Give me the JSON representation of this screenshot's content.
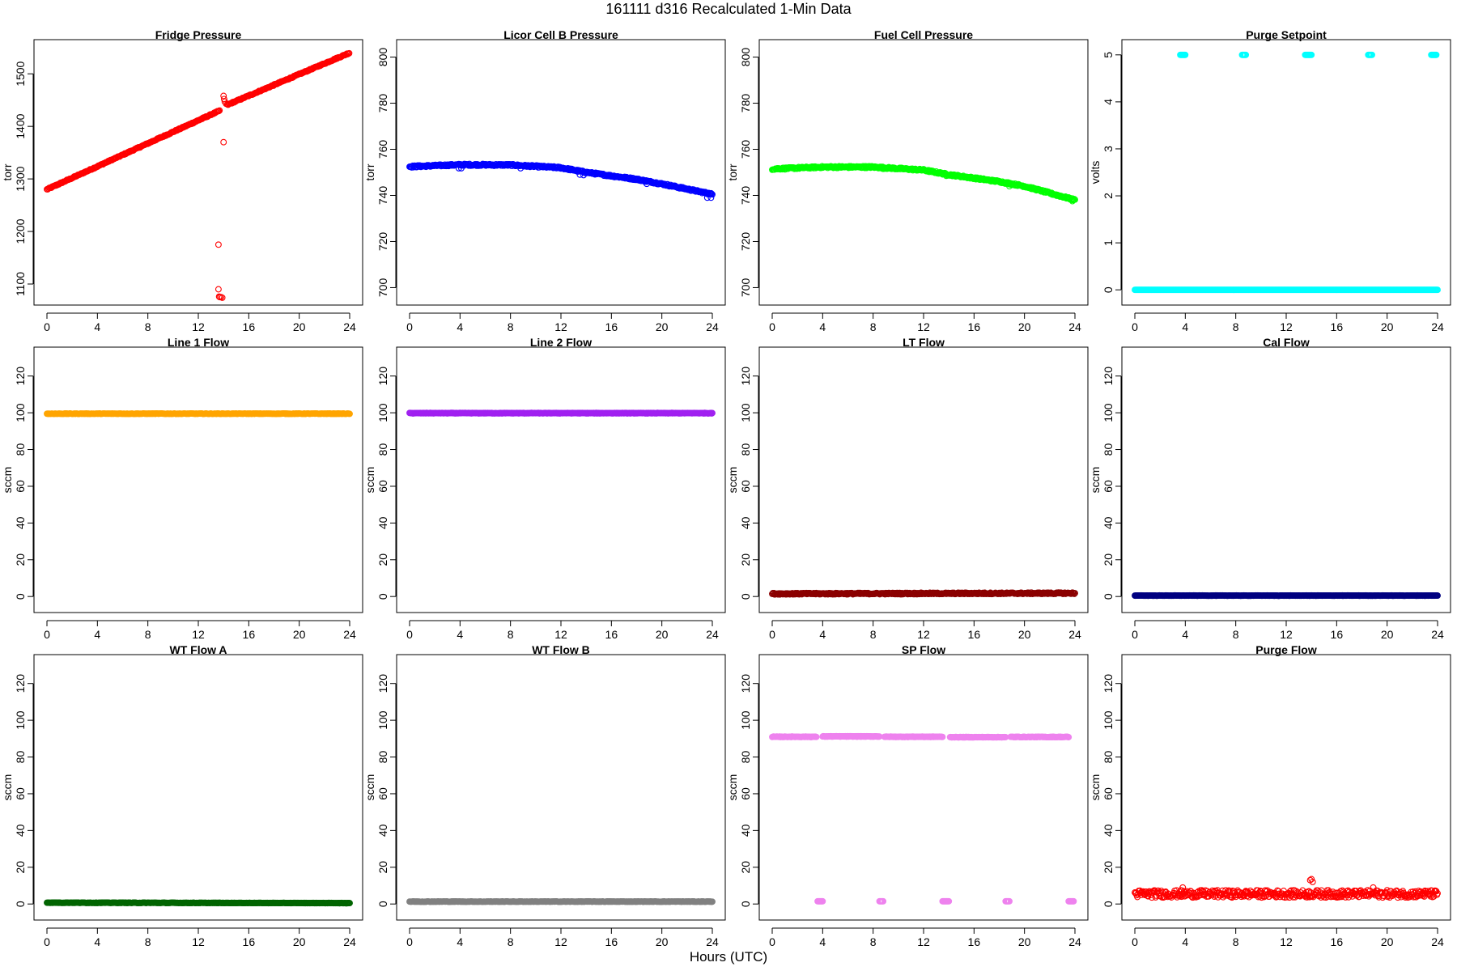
{
  "figure": {
    "title": "161111   d316   Recalculated 1-Min Data",
    "xlabel": "Hours (UTC)"
  },
  "chart_data": [
    {
      "type": "scatter",
      "title": "Fridge Pressure",
      "ylabel": "torr",
      "xlim": [
        0,
        24
      ],
      "ylim": [
        1080,
        1545
      ],
      "xticks": [
        0,
        4,
        8,
        12,
        16,
        20,
        24
      ],
      "yticks": [
        1100,
        1200,
        1300,
        1400,
        1500
      ],
      "color": "#ff0000",
      "series": [
        {
          "kind": "linear",
          "x0": 0,
          "x1": 13.7,
          "y0": 1280,
          "y1": 1430,
          "step": 0.06,
          "noise": 1.0
        },
        {
          "kind": "points",
          "points": [
            [
              14.0,
              1458
            ],
            [
              14.05,
              1452
            ],
            [
              14.1,
              1447
            ],
            [
              14.2,
              1443
            ]
          ]
        },
        {
          "kind": "linear",
          "x0": 14.3,
          "x1": 24,
          "y0": 1441,
          "y1": 1540,
          "step": 0.06,
          "noise": 1.0
        },
        {
          "kind": "points",
          "points": [
            [
              14.0,
              1370
            ],
            [
              13.6,
              1175
            ],
            [
              13.6,
              1090
            ],
            [
              13.7,
              1075
            ],
            [
              13.8,
              1075
            ],
            [
              13.9,
              1074
            ],
            [
              13.65,
              1076
            ]
          ]
        }
      ]
    },
    {
      "type": "scatter",
      "title": "Licor Cell B Pressure",
      "ylabel": "torr",
      "xlim": [
        0,
        24
      ],
      "ylim": [
        697,
        803
      ],
      "xticks": [
        0,
        4,
        8,
        12,
        16,
        20,
        24
      ],
      "yticks": [
        700,
        720,
        740,
        760,
        780,
        800
      ],
      "color": "#0000ff",
      "series": [
        {
          "kind": "curve",
          "x0": 0,
          "x1": 24,
          "knots": [
            [
              0,
              752.5
            ],
            [
              4,
              753.3
            ],
            [
              8,
              753.2
            ],
            [
              12,
              752
            ],
            [
              14,
              750
            ],
            [
              18,
              747
            ],
            [
              20,
              745
            ],
            [
              24,
              740.5
            ]
          ],
          "step": 0.05,
          "noise": 0.4
        },
        {
          "kind": "points",
          "points": [
            [
              3.9,
              751.8
            ],
            [
              4.1,
              751.8
            ],
            [
              8.8,
              751.8
            ],
            [
              13.5,
              749
            ],
            [
              13.8,
              748.8
            ],
            [
              18.8,
              745
            ],
            [
              23.6,
              739
            ],
            [
              23.9,
              739
            ]
          ]
        }
      ]
    },
    {
      "type": "scatter",
      "title": "Fuel Cell Pressure",
      "ylabel": "torr",
      "xlim": [
        0,
        24
      ],
      "ylim": [
        697,
        803
      ],
      "xticks": [
        0,
        4,
        8,
        12,
        16,
        20,
        24
      ],
      "yticks": [
        700,
        720,
        740,
        760,
        780,
        800
      ],
      "color": "#00ff00",
      "series": [
        {
          "kind": "curve",
          "x0": 0,
          "x1": 24,
          "knots": [
            [
              0,
              751.5
            ],
            [
              4,
              752.3
            ],
            [
              8,
              752.3
            ],
            [
              12,
              751
            ],
            [
              14,
              749
            ],
            [
              18,
              746
            ],
            [
              20,
              744
            ],
            [
              24,
              738
            ]
          ],
          "step": 0.05,
          "noise": 0.4
        },
        {
          "kind": "points",
          "points": [
            [
              8.8,
              751.5
            ],
            [
              13.8,
              748.5
            ],
            [
              18.8,
              744
            ],
            [
              23.8,
              737.5
            ]
          ]
        }
      ]
    },
    {
      "type": "scatter",
      "title": "Purge Setpoint",
      "ylabel": "volts",
      "xlim": [
        0,
        24
      ],
      "ylim": [
        -0.1,
        5.1
      ],
      "xticks": [
        0,
        4,
        8,
        12,
        16,
        20,
        24
      ],
      "yticks": [
        0,
        1,
        2,
        3,
        4,
        5
      ],
      "color": "#00ffff",
      "series": [
        {
          "kind": "linear",
          "x0": 0,
          "x1": 24,
          "y0": 0,
          "y1": 0,
          "step": 0.05,
          "noise": 0
        },
        {
          "kind": "linear",
          "x0": 3.6,
          "x1": 4.0,
          "y0": 5,
          "y1": 5,
          "step": 0.05,
          "noise": 0
        },
        {
          "kind": "linear",
          "x0": 8.5,
          "x1": 8.8,
          "y0": 5,
          "y1": 5,
          "step": 0.05,
          "noise": 0
        },
        {
          "kind": "linear",
          "x0": 13.5,
          "x1": 14.0,
          "y0": 5,
          "y1": 5,
          "step": 0.05,
          "noise": 0
        },
        {
          "kind": "linear",
          "x0": 18.5,
          "x1": 18.8,
          "y0": 5,
          "y1": 5,
          "step": 0.05,
          "noise": 0
        },
        {
          "kind": "linear",
          "x0": 23.5,
          "x1": 23.9,
          "y0": 5,
          "y1": 5,
          "step": 0.05,
          "noise": 0
        }
      ]
    },
    {
      "type": "scatter",
      "title": "Line 1 Flow",
      "ylabel": "sccm",
      "xlim": [
        0,
        24
      ],
      "ylim": [
        -3,
        130
      ],
      "xticks": [
        0,
        4,
        8,
        12,
        16,
        20,
        24
      ],
      "yticks": [
        0,
        20,
        40,
        60,
        80,
        100,
        120
      ],
      "color": "#ffa500",
      "series": [
        {
          "kind": "linear",
          "x0": 0,
          "x1": 24,
          "y0": 99.5,
          "y1": 99.5,
          "step": 0.05,
          "noise": 0.1
        }
      ]
    },
    {
      "type": "scatter",
      "title": "Line 2 Flow",
      "ylabel": "sccm",
      "xlim": [
        0,
        24
      ],
      "ylim": [
        -3,
        130
      ],
      "xticks": [
        0,
        4,
        8,
        12,
        16,
        20,
        24
      ],
      "yticks": [
        0,
        20,
        40,
        60,
        80,
        100,
        120
      ],
      "color": "#a020f0",
      "series": [
        {
          "kind": "linear",
          "x0": 0,
          "x1": 24,
          "y0": 99.8,
          "y1": 99.8,
          "step": 0.05,
          "noise": 0.15
        }
      ]
    },
    {
      "type": "scatter",
      "title": "LT Flow",
      "ylabel": "sccm",
      "xlim": [
        0,
        24
      ],
      "ylim": [
        -3,
        130
      ],
      "xticks": [
        0,
        4,
        8,
        12,
        16,
        20,
        24
      ],
      "yticks": [
        0,
        20,
        40,
        60,
        80,
        100,
        120
      ],
      "color": "#8b0000",
      "series": [
        {
          "kind": "linear",
          "x0": 0,
          "x1": 24,
          "y0": 1.5,
          "y1": 1.8,
          "step": 0.05,
          "noise": 0.4
        }
      ]
    },
    {
      "type": "scatter",
      "title": "Cal Flow",
      "ylabel": "sccm",
      "xlim": [
        0,
        24
      ],
      "ylim": [
        -3,
        130
      ],
      "xticks": [
        0,
        4,
        8,
        12,
        16,
        20,
        24
      ],
      "yticks": [
        0,
        20,
        40,
        60,
        80,
        100,
        120
      ],
      "color": "#000080",
      "series": [
        {
          "kind": "linear",
          "x0": 0,
          "x1": 24,
          "y0": 0.5,
          "y1": 0.5,
          "step": 0.05,
          "noise": 0.1
        }
      ]
    },
    {
      "type": "scatter",
      "title": "WT Flow A",
      "ylabel": "sccm",
      "xlim": [
        0,
        24
      ],
      "ylim": [
        -3,
        130
      ],
      "xticks": [
        0,
        4,
        8,
        12,
        16,
        20,
        24
      ],
      "yticks": [
        0,
        20,
        40,
        60,
        80,
        100,
        120
      ],
      "color": "#006400",
      "series": [
        {
          "kind": "linear",
          "x0": 0,
          "x1": 24,
          "y0": 0.7,
          "y1": 0.5,
          "step": 0.05,
          "noise": 0.1
        }
      ]
    },
    {
      "type": "scatter",
      "title": "WT Flow B",
      "ylabel": "sccm",
      "xlim": [
        0,
        24
      ],
      "ylim": [
        -3,
        130
      ],
      "xticks": [
        0,
        4,
        8,
        12,
        16,
        20,
        24
      ],
      "yticks": [
        0,
        20,
        40,
        60,
        80,
        100,
        120
      ],
      "color": "#808080",
      "series": [
        {
          "kind": "linear",
          "x0": 0,
          "x1": 24,
          "y0": 1.3,
          "y1": 1.3,
          "step": 0.05,
          "noise": 0.1
        }
      ]
    },
    {
      "type": "scatter",
      "title": "SP Flow",
      "ylabel": "sccm",
      "xlim": [
        0,
        24
      ],
      "ylim": [
        -3,
        130
      ],
      "xticks": [
        0,
        4,
        8,
        12,
        16,
        20,
        24
      ],
      "yticks": [
        0,
        20,
        40,
        60,
        80,
        100,
        120
      ],
      "color": "#ee82ee",
      "series": [
        {
          "kind": "linear",
          "x0": 0,
          "x1": 3.5,
          "y0": 91,
          "y1": 91,
          "step": 0.05,
          "noise": 0.15
        },
        {
          "kind": "linear",
          "x0": 4.0,
          "x1": 8.5,
          "y0": 91.2,
          "y1": 91.2,
          "step": 0.05,
          "noise": 0.15
        },
        {
          "kind": "linear",
          "x0": 8.9,
          "x1": 13.5,
          "y0": 91,
          "y1": 91,
          "step": 0.05,
          "noise": 0.15
        },
        {
          "kind": "linear",
          "x0": 14.1,
          "x1": 18.5,
          "y0": 90.8,
          "y1": 90.8,
          "step": 0.05,
          "noise": 0.15
        },
        {
          "kind": "linear",
          "x0": 18.9,
          "x1": 23.5,
          "y0": 90.9,
          "y1": 90.9,
          "step": 0.05,
          "noise": 0.15
        },
        {
          "kind": "linear",
          "x0": 3.6,
          "x1": 4.0,
          "y0": 1.5,
          "y1": 1.5,
          "step": 0.05,
          "noise": 0
        },
        {
          "kind": "linear",
          "x0": 8.5,
          "x1": 8.8,
          "y0": 1.5,
          "y1": 1.5,
          "step": 0.05,
          "noise": 0
        },
        {
          "kind": "linear",
          "x0": 13.5,
          "x1": 14.0,
          "y0": 1.5,
          "y1": 1.5,
          "step": 0.05,
          "noise": 0
        },
        {
          "kind": "linear",
          "x0": 18.5,
          "x1": 18.8,
          "y0": 1.5,
          "y1": 1.5,
          "step": 0.05,
          "noise": 0
        },
        {
          "kind": "linear",
          "x0": 23.5,
          "x1": 23.9,
          "y0": 1.5,
          "y1": 1.5,
          "step": 0.05,
          "noise": 0
        }
      ]
    },
    {
      "type": "scatter",
      "title": "Purge Flow",
      "ylabel": "sccm",
      "xlim": [
        0,
        24
      ],
      "ylim": [
        -3,
        130
      ],
      "xticks": [
        0,
        4,
        8,
        12,
        16,
        20,
        24
      ],
      "yticks": [
        0,
        20,
        40,
        60,
        80,
        100,
        120
      ],
      "color": "#ff0000",
      "series": [
        {
          "kind": "linear",
          "x0": 0,
          "x1": 24,
          "y0": 5.5,
          "y1": 5.5,
          "step": 0.05,
          "noise": 2.0
        },
        {
          "kind": "points",
          "points": [
            [
              13.9,
              13
            ],
            [
              14.0,
              13.5
            ],
            [
              14.1,
              12
            ],
            [
              3.8,
              9
            ],
            [
              18.9,
              9
            ]
          ]
        }
      ]
    }
  ]
}
